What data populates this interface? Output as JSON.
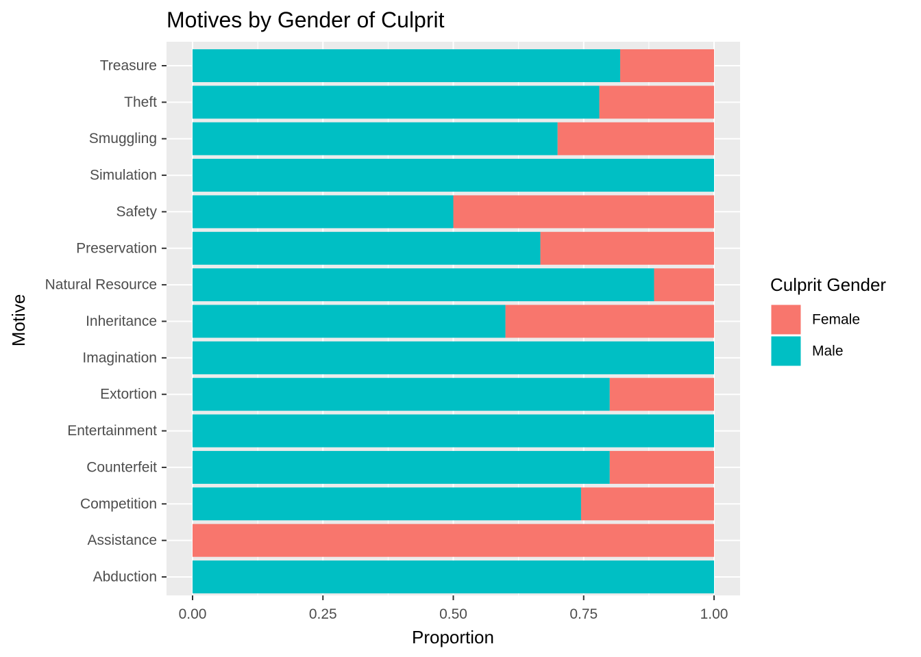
{
  "chart_data": {
    "type": "bar",
    "orientation": "horizontal",
    "stacked": true,
    "title": "Motives by Gender of Culprit",
    "xlabel": "Proportion",
    "ylabel": "Motive",
    "xlim": [
      0,
      1
    ],
    "xticks": [
      "0.00",
      "0.25",
      "0.50",
      "0.75",
      "1.00"
    ],
    "grid": true,
    "legend": {
      "title": "Culprit Gender",
      "position": "right"
    },
    "categories": [
      "Treasure",
      "Theft",
      "Smuggling",
      "Simulation",
      "Safety",
      "Preservation",
      "Natural Resource",
      "Inheritance",
      "Imagination",
      "Extortion",
      "Entertainment",
      "Counterfeit",
      "Competition",
      "Assistance",
      "Abduction"
    ],
    "series": [
      {
        "name": "Female",
        "color": "#F8766D",
        "values": [
          0.18,
          0.22,
          0.3,
          0.0,
          0.5,
          0.333,
          0.115,
          0.4,
          0.0,
          0.2,
          0.0,
          0.2,
          0.255,
          1.0,
          0.0
        ]
      },
      {
        "name": "Male",
        "color": "#00BFC4",
        "values": [
          0.82,
          0.78,
          0.7,
          1.0,
          0.5,
          0.667,
          0.885,
          0.6,
          1.0,
          0.8,
          1.0,
          0.8,
          0.745,
          0.0,
          1.0
        ]
      }
    ]
  }
}
